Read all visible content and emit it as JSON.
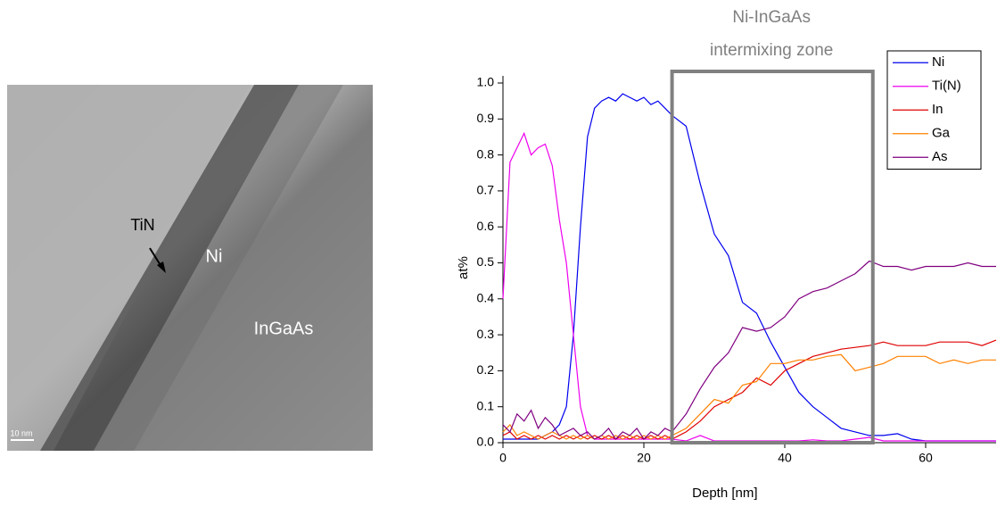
{
  "image": {
    "labels": [
      "TiN",
      "Ni",
      "InGaAs"
    ],
    "scale_bar": "10 nm"
  },
  "chart_data": {
    "type": "line",
    "x_label": "Depth [nm]",
    "y_label": "at%",
    "annotation": {
      "lines": [
        "Ni-InGaAs",
        "intermixing zone"
      ],
      "xlim": [
        24,
        52.5
      ],
      "color": "#808080"
    },
    "xlim": [
      0,
      70
    ],
    "ylim": [
      0,
      1
    ],
    "xticks": [
      0,
      20,
      40,
      60
    ],
    "yticks": [
      {
        "value": 0,
        "label": "0.0"
      },
      0.1,
      0.2,
      0.3,
      0.4,
      0.5,
      0.6,
      0.7,
      0.8,
      0.9,
      {
        "value": 1,
        "label": "1.0"
      }
    ],
    "legend": "upper right",
    "x": [
      0,
      1,
      2,
      3,
      4,
      5,
      6,
      7,
      8,
      9,
      10,
      11,
      12,
      13,
      14,
      15,
      16,
      17,
      18,
      19,
      20,
      21,
      22,
      23,
      24,
      26,
      28,
      30,
      32,
      34,
      36,
      38,
      40,
      42,
      44,
      46,
      48,
      50,
      52,
      54,
      56,
      58,
      60,
      62,
      64,
      66,
      68,
      70
    ],
    "series": [
      {
        "name": "Ni",
        "color": "#0000ee",
        "values": [
          0.01,
          0.01,
          0.01,
          0.01,
          0.01,
          0.01,
          0.02,
          0.03,
          0.05,
          0.1,
          0.3,
          0.6,
          0.85,
          0.93,
          0.95,
          0.96,
          0.95,
          0.97,
          0.96,
          0.95,
          0.96,
          0.94,
          0.95,
          0.93,
          0.91,
          0.88,
          0.72,
          0.58,
          0.52,
          0.39,
          0.36,
          0.28,
          0.21,
          0.14,
          0.1,
          0.07,
          0.04,
          0.03,
          0.02,
          0.02,
          0.025,
          0.01,
          0.005,
          0.005,
          0.005,
          0.005,
          0.005,
          0.005
        ]
      },
      {
        "name": "Ti(N)",
        "color": "#ee00ee",
        "values": [
          0.4,
          0.78,
          0.82,
          0.86,
          0.8,
          0.82,
          0.83,
          0.77,
          0.62,
          0.5,
          0.3,
          0.1,
          0.02,
          0.01,
          0.01,
          0.01,
          0.01,
          0.01,
          0.01,
          0.01,
          0.01,
          0.01,
          0.01,
          0.01,
          0.01,
          0.005,
          0.02,
          0.005,
          0.005,
          0.005,
          0.005,
          0.005,
          0.005,
          0.005,
          0.008,
          0.005,
          0.005,
          0.01,
          0.015,
          0.005,
          0.005,
          0.005,
          0.005,
          0.005,
          0.005,
          0.005,
          0.005,
          0.005
        ]
      },
      {
        "name": "In",
        "color": "#e00000",
        "values": [
          0.02,
          0.03,
          0.01,
          0.02,
          0.01,
          0.02,
          0.01,
          0.02,
          0.01,
          0.02,
          0.01,
          0.02,
          0.01,
          0.02,
          0.01,
          0.02,
          0.01,
          0.02,
          0.01,
          0.02,
          0.01,
          0.02,
          0.01,
          0.02,
          0.01,
          0.03,
          0.06,
          0.1,
          0.12,
          0.14,
          0.18,
          0.16,
          0.2,
          0.22,
          0.24,
          0.25,
          0.26,
          0.265,
          0.27,
          0.28,
          0.27,
          0.27,
          0.27,
          0.28,
          0.28,
          0.28,
          0.27,
          0.285
        ]
      },
      {
        "name": "Ga",
        "color": "#ff8000",
        "values": [
          0.03,
          0.05,
          0.02,
          0.03,
          0.02,
          0.01,
          0.02,
          0.03,
          0.02,
          0.01,
          0.02,
          0.01,
          0.02,
          0.01,
          0.02,
          0.01,
          0.02,
          0.01,
          0.02,
          0.01,
          0.02,
          0.01,
          0.02,
          0.01,
          0.02,
          0.04,
          0.08,
          0.12,
          0.11,
          0.16,
          0.17,
          0.22,
          0.22,
          0.23,
          0.23,
          0.24,
          0.245,
          0.2,
          0.21,
          0.22,
          0.24,
          0.24,
          0.24,
          0.22,
          0.23,
          0.22,
          0.23,
          0.23
        ]
      },
      {
        "name": "As",
        "color": "#800080",
        "values": [
          0.05,
          0.03,
          0.08,
          0.06,
          0.09,
          0.04,
          0.07,
          0.05,
          0.02,
          0.03,
          0.04,
          0.02,
          0.03,
          0.01,
          0.02,
          0.04,
          0.01,
          0.03,
          0.02,
          0.04,
          0.01,
          0.03,
          0.02,
          0.04,
          0.03,
          0.08,
          0.15,
          0.21,
          0.25,
          0.32,
          0.31,
          0.32,
          0.35,
          0.4,
          0.42,
          0.43,
          0.45,
          0.47,
          0.505,
          0.49,
          0.49,
          0.48,
          0.49,
          0.49,
          0.49,
          0.5,
          0.49,
          0.49
        ]
      }
    ]
  }
}
